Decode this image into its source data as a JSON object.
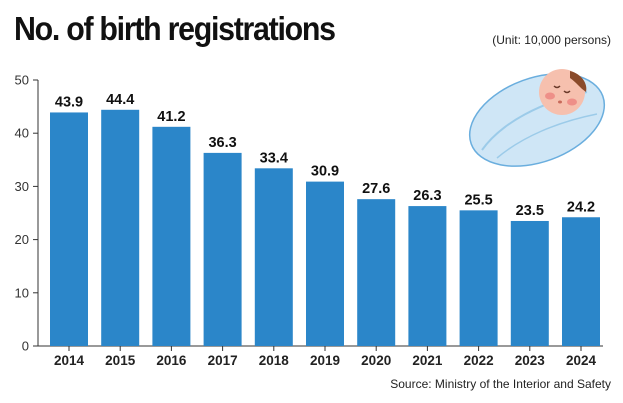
{
  "header": {
    "title": "No. of birth registrations",
    "unit": "(Unit: 10,000 persons)"
  },
  "footer": {
    "source": "Source: Ministry of the Interior and Safety"
  },
  "colors": {
    "bar": "#2b86c9",
    "axis": "#333333",
    "text": "#111111"
  },
  "illustration": {
    "icon": "swaddled-baby-icon"
  },
  "chart_data": {
    "type": "bar",
    "title": "No. of birth registrations",
    "categories": [
      "2014",
      "2015",
      "2016",
      "2017",
      "2018",
      "2019",
      "2020",
      "2021",
      "2022",
      "2023",
      "2024"
    ],
    "values": [
      43.9,
      44.4,
      41.2,
      36.3,
      33.4,
      30.9,
      27.6,
      26.3,
      25.5,
      23.5,
      24.2
    ],
    "value_labels": [
      "43.9",
      "44.4",
      "41.2",
      "36.3",
      "33.4",
      "30.9",
      "27.6",
      "26.3",
      "25.5",
      "23.5",
      "24.2"
    ],
    "yticks": [
      "0",
      "10",
      "20",
      "30",
      "40",
      "50"
    ],
    "ylim": [
      0,
      50
    ],
    "xlabel": "",
    "ylabel": "",
    "grid": false,
    "legend": "none"
  }
}
